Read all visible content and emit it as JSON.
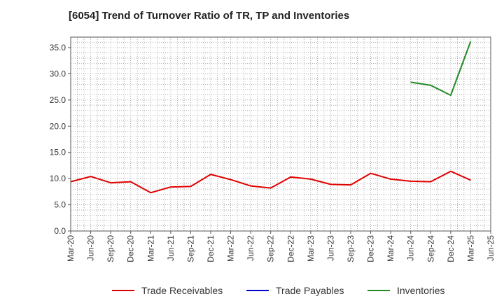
{
  "title": "[6054]  Trend of Turnover Ratio of TR, TP and Inventories",
  "chart_data": {
    "type": "line",
    "title": "[6054]  Trend of Turnover Ratio of TR, TP and Inventories",
    "xlabel": "",
    "ylabel": "",
    "ylim": [
      0,
      37
    ],
    "y_ticks": [
      "0.0",
      "5.0",
      "10.0",
      "15.0",
      "20.0",
      "25.0",
      "30.0",
      "35.0"
    ],
    "y_tick_values": [
      0,
      5,
      10,
      15,
      20,
      25,
      30,
      35
    ],
    "grid": true,
    "legend_position": "bottom",
    "x": [
      "Mar-20",
      "Jun-20",
      "Sep-20",
      "Dec-20",
      "Mar-21",
      "Jun-21",
      "Sep-21",
      "Dec-21",
      "Mar-22",
      "Jun-22",
      "Sep-22",
      "Dec-22",
      "Mar-23",
      "Jun-23",
      "Sep-23",
      "Dec-23",
      "Mar-24",
      "Jun-24",
      "Sep-24",
      "Dec-24",
      "Mar-25",
      "Jun-25"
    ],
    "series": [
      {
        "name": "Trade Receivables",
        "color": "#e00000",
        "values": [
          9.4,
          10.4,
          9.2,
          9.4,
          7.3,
          8.4,
          8.5,
          10.8,
          9.8,
          8.6,
          8.2,
          10.3,
          9.9,
          8.9,
          8.8,
          11.0,
          9.9,
          9.5,
          9.4,
          11.4,
          9.7,
          null
        ]
      },
      {
        "name": "Trade Payables",
        "color": "#0000cc",
        "values": [
          null,
          null,
          null,
          null,
          null,
          null,
          null,
          null,
          null,
          null,
          null,
          null,
          null,
          null,
          null,
          null,
          null,
          null,
          null,
          null,
          null,
          null
        ]
      },
      {
        "name": "Inventories",
        "color": "#228b22",
        "values": [
          null,
          null,
          null,
          null,
          null,
          null,
          null,
          null,
          null,
          null,
          null,
          null,
          null,
          null,
          null,
          null,
          null,
          28.4,
          27.8,
          25.9,
          36.2,
          null
        ]
      }
    ]
  }
}
